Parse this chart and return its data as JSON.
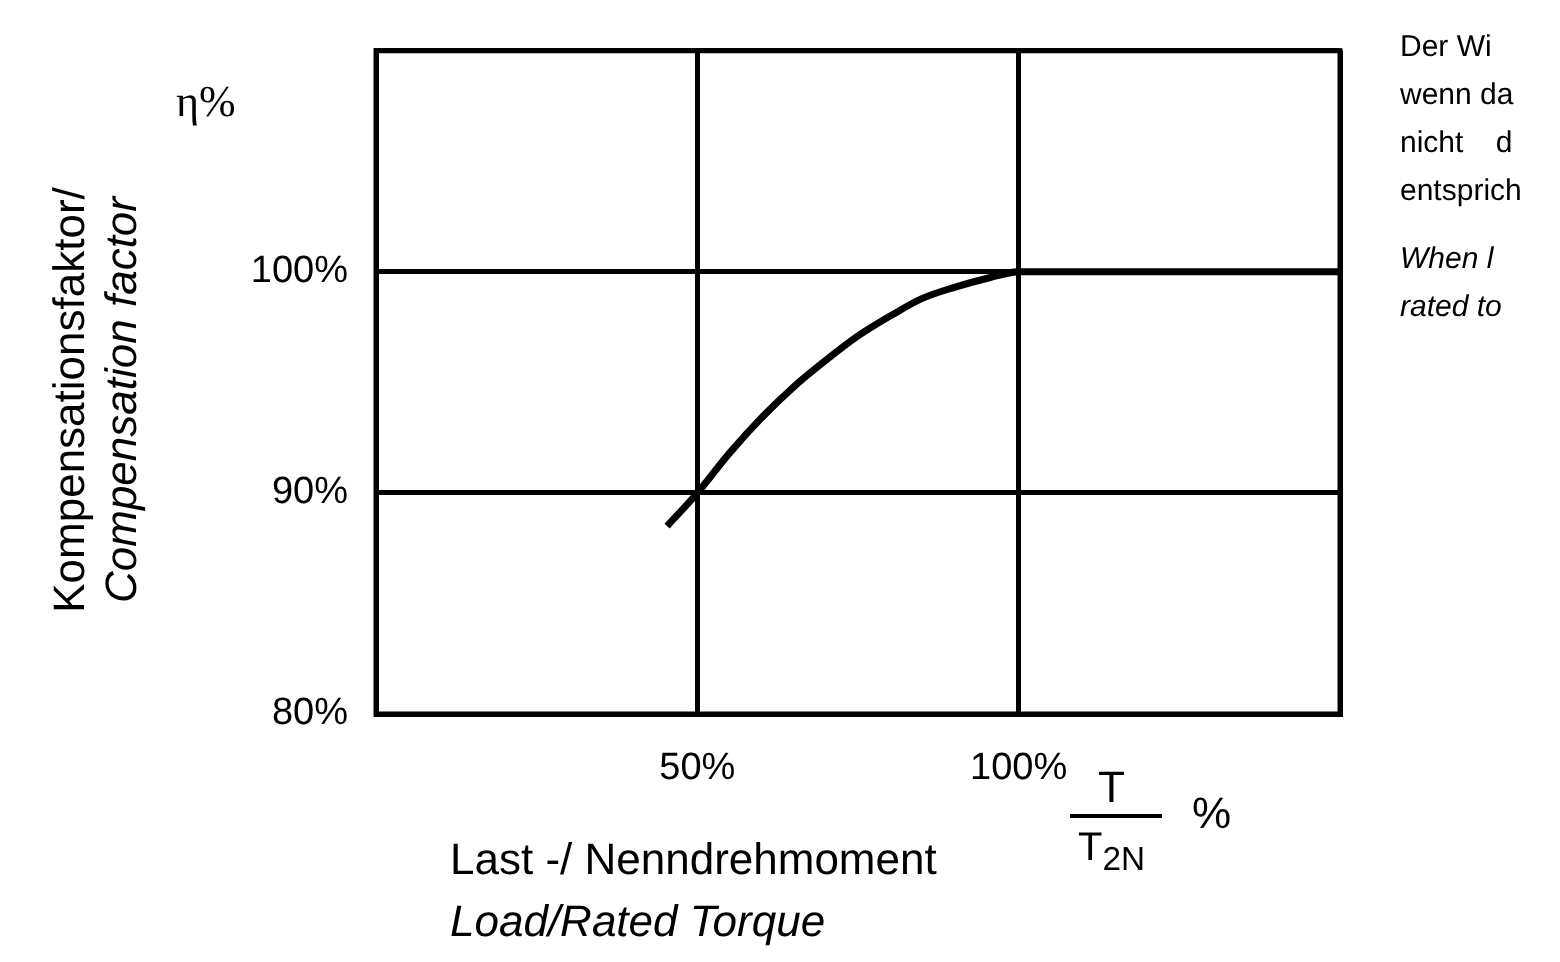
{
  "chart_data": {
    "type": "line",
    "xlabel": "Last -/ Nenndrehmoment\nLoad/Rated Torque",
    "ylabel": "Kompensationsfaktor/\nCompensation factor",
    "series": [
      {
        "color": "#000000",
        "x": [
          45.3,
          50,
          55,
          60,
          65,
          70,
          75,
          80,
          85,
          90,
          95,
          100,
          110,
          120,
          130,
          140,
          150
        ],
        "values": [
          88.5,
          90,
          91.8,
          93.4,
          94.8,
          96,
          97.1,
          98,
          98.8,
          99.3,
          99.7,
          100,
          100,
          100,
          100,
          100,
          100
        ]
      }
    ],
    "xlim": [
      0,
      150
    ],
    "xticks": [
      {
        "value": 0,
        "label": null
      },
      {
        "value": 50,
        "label": "50%"
      },
      {
        "value": 100,
        "label": "100%"
      },
      {
        "value": 150,
        "label": null
      }
    ],
    "ylim": [
      80,
      110
    ],
    "yticks": [
      {
        "value": 80,
        "label": "80%"
      },
      {
        "value": 90,
        "label": "90%"
      },
      {
        "value": 100,
        "label": "100%"
      },
      {
        "value": 110,
        "label": null
      }
    ],
    "grid": true,
    "legend": false,
    "annotations": [
      "η%",
      "T",
      "T$_{2N}$",
      "%",
      "Der Wi",
      "wenn da",
      "nicht d",
      "entsprich",
      "When l",
      "rated to"
    ]
  }
}
